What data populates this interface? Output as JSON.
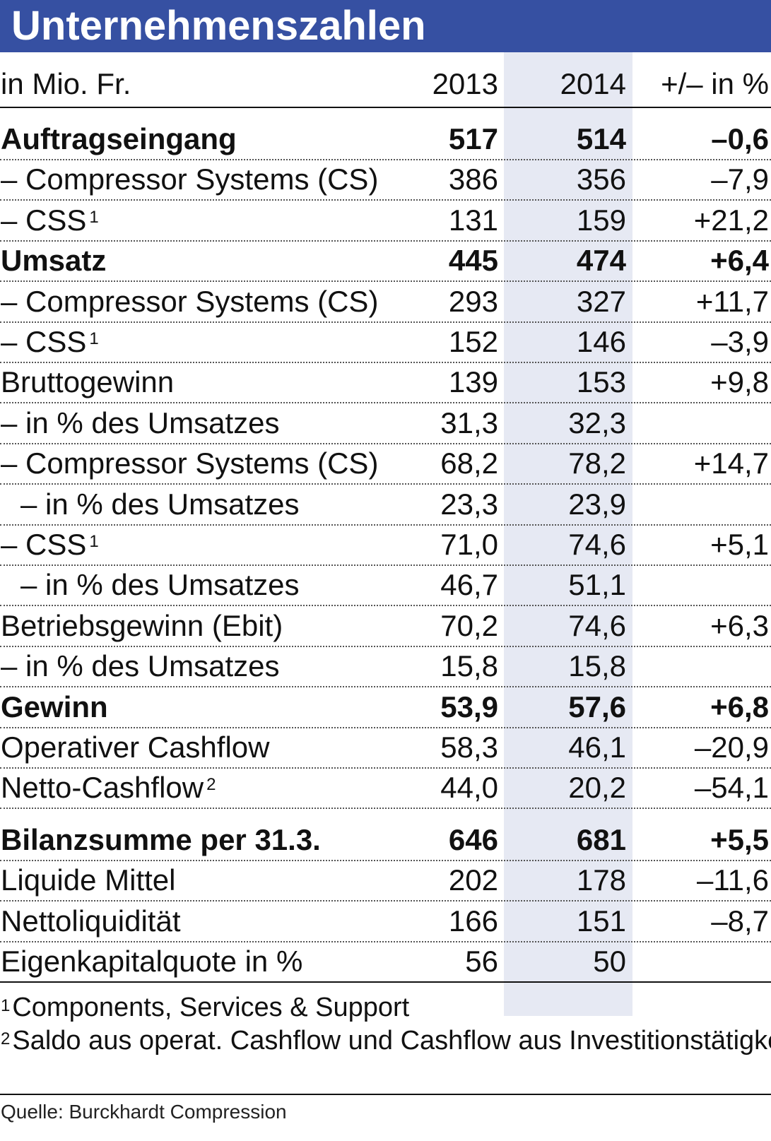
{
  "title": "Unternehmenszahlen",
  "header": {
    "label": "in Mio. Fr.",
    "y1": "2013",
    "y2": "2014",
    "change": "+/– in %"
  },
  "rows": [
    {
      "label": "Auftragseingang",
      "sup": "",
      "y1": "517",
      "y2": "514",
      "change": "–0,6",
      "bold": true,
      "indent": false
    },
    {
      "label": "– Compressor Systems (CS)",
      "sup": "",
      "y1": "386",
      "y2": "356",
      "change": "–7,9",
      "bold": false,
      "indent": false
    },
    {
      "label": "– CSS",
      "sup": "1",
      "y1": "131",
      "y2": "159",
      "change": "+21,2",
      "bold": false,
      "indent": false
    },
    {
      "label": "Umsatz",
      "sup": "",
      "y1": "445",
      "y2": "474",
      "change": "+6,4",
      "bold": true,
      "indent": false
    },
    {
      "label": "– Compressor Systems (CS)",
      "sup": "",
      "y1": "293",
      "y2": "327",
      "change": "+11,7",
      "bold": false,
      "indent": false
    },
    {
      "label": "– CSS",
      "sup": "1",
      "y1": "152",
      "y2": "146",
      "change": "–3,9",
      "bold": false,
      "indent": false
    },
    {
      "label": "Bruttogewinn",
      "sup": "",
      "y1": "139",
      "y2": "153",
      "change": "+9,8",
      "bold": false,
      "indent": false
    },
    {
      "label": "– in % des Umsatzes",
      "sup": "",
      "y1": "31,3",
      "y2": "32,3",
      "change": "",
      "bold": false,
      "indent": false
    },
    {
      "label": "– Compressor Systems (CS)",
      "sup": "",
      "y1": "68,2",
      "y2": "78,2",
      "change": "+14,7",
      "bold": false,
      "indent": false
    },
    {
      "label": "– in % des Umsatzes",
      "sup": "",
      "y1": "23,3",
      "y2": "23,9",
      "change": "",
      "bold": false,
      "indent": true
    },
    {
      "label": "– CSS",
      "sup": "1",
      "y1": "71,0",
      "y2": "74,6",
      "change": "+5,1",
      "bold": false,
      "indent": false
    },
    {
      "label": "– in % des Umsatzes",
      "sup": "",
      "y1": "46,7",
      "y2": "51,1",
      "change": "",
      "bold": false,
      "indent": true
    },
    {
      "label": "Betriebsgewinn (Ebit)",
      "sup": "",
      "y1": "70,2",
      "y2": "74,6",
      "change": "+6,3",
      "bold": false,
      "indent": false
    },
    {
      "label": "– in % des Umsatzes",
      "sup": "",
      "y1": "15,8",
      "y2": "15,8",
      "change": "",
      "bold": false,
      "indent": false
    },
    {
      "label": "Gewinn",
      "sup": "",
      "y1": "53,9",
      "y2": "57,6",
      "change": "+6,8",
      "bold": true,
      "indent": false
    },
    {
      "label": "Operativer Cashflow",
      "sup": "",
      "y1": "58,3",
      "y2": "46,1",
      "change": "–20,9",
      "bold": false,
      "indent": false
    },
    {
      "label": "Netto-Cashflow",
      "sup": "2",
      "y1": "44,0",
      "y2": "20,2",
      "change": "–54,1",
      "bold": false,
      "indent": false
    },
    {
      "label": "Bilanzsumme per 31.3.",
      "sup": "",
      "y1": "646",
      "y2": "681",
      "change": "+5,5",
      "bold": true,
      "indent": false
    },
    {
      "label": "Liquide Mittel",
      "sup": "",
      "y1": "202",
      "y2": "178",
      "change": "–11,6",
      "bold": false,
      "indent": false
    },
    {
      "label": "Nettoliquidität",
      "sup": "",
      "y1": "166",
      "y2": "151",
      "change": "–8,7",
      "bold": false,
      "indent": false
    },
    {
      "label": "Eigenkapitalquote in %",
      "sup": "",
      "y1": "56",
      "y2": "50",
      "change": "",
      "bold": false,
      "indent": false
    }
  ],
  "footnotes": [
    {
      "mark": "1",
      "text": "Components, Services & Support"
    },
    {
      "mark": "2",
      "text": "Saldo aus operat. Cashflow und Cashflow aus Investitionstätigkeit"
    }
  ],
  "source": "Quelle: Burckhardt Compression"
}
